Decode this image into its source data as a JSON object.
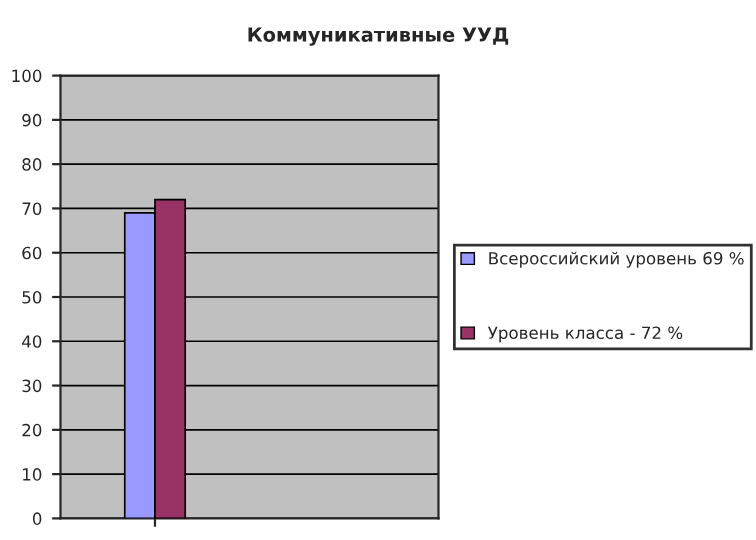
{
  "chart_data": {
    "type": "bar",
    "title": "Коммуникативные УУД",
    "categories": [
      null
    ],
    "series": [
      {
        "name": "Всероссийский уровень 69 %",
        "color": "#9999ff",
        "values": [
          69
        ]
      },
      {
        "name": "Уровень класса - 72 %",
        "color": "#993366",
        "values": [
          72
        ]
      }
    ],
    "ylim": [
      0,
      100
    ],
    "yticks": [
      0,
      10,
      20,
      30,
      40,
      50,
      60,
      70,
      80,
      90,
      100
    ],
    "grid": "y",
    "legend": "right"
  }
}
